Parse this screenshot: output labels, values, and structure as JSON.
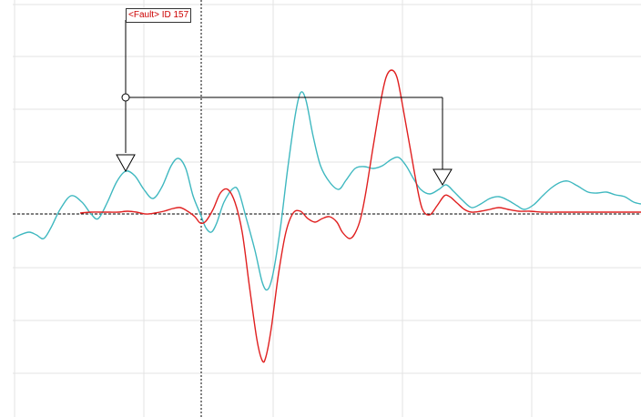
{
  "fault_marker": {
    "label": "<Fault> ID 157",
    "color": "#cc0000"
  },
  "traces": [
    {
      "color": "#3fb8c0"
    },
    {
      "color": "#e02020"
    }
  ],
  "colors": {
    "grid": "#e3e3e3",
    "zero_line": "#000000",
    "cursor_line": "#000000",
    "markers": "#000000",
    "background": "#ffffff"
  }
}
